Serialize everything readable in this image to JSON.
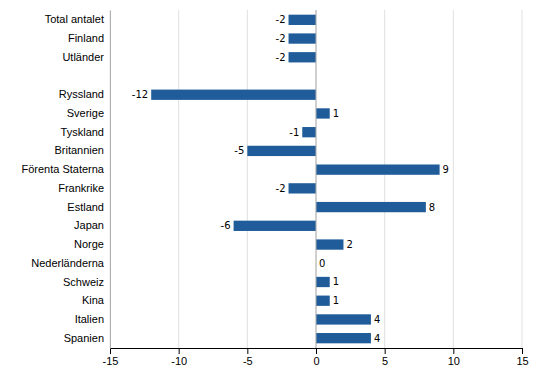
{
  "chart_data": {
    "type": "bar",
    "orientation": "horizontal",
    "categories": [
      "Total antalet",
      "Finland",
      "Utländer",
      null,
      "Ryssland",
      "Sverige",
      "Tyskland",
      "Britannien",
      "Förenta Staterna",
      "Frankrike",
      "Estland",
      "Japan",
      "Norge",
      "Nederländerna",
      "Schweiz",
      "Kina",
      "Italien",
      "Spanien"
    ],
    "values": [
      -2,
      -2,
      -2,
      null,
      -12,
      1,
      -1,
      -5,
      9,
      -2,
      8,
      -6,
      2,
      0,
      1,
      1,
      4,
      4
    ],
    "color": "#1F5C99",
    "xlim": [
      -15,
      15
    ],
    "xticks": [
      -15,
      -10,
      -5,
      0,
      5,
      10,
      15
    ],
    "grid": true,
    "data_labels": true
  }
}
